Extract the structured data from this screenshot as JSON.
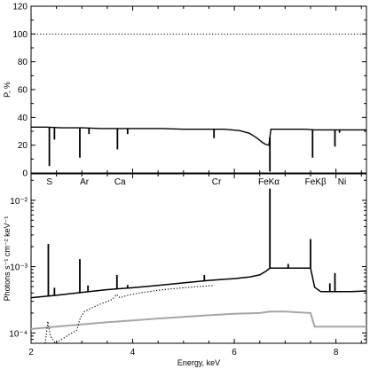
{
  "chart_data": [
    {
      "type": "line",
      "panel": "top",
      "ylabel": "P, %",
      "xlim": [
        2.0,
        8.6
      ],
      "ylim": [
        0,
        120
      ],
      "yticks": [
        0,
        20,
        40,
        60,
        80,
        100,
        120
      ],
      "reference_line": {
        "y": 100,
        "style": "dotted"
      },
      "series": [
        {
          "style": "solid",
          "x": [
            2.0,
            2.3,
            2.6,
            3.0,
            3.4,
            3.8,
            4.2,
            4.6,
            5.0,
            5.4,
            5.8,
            6.1,
            6.3,
            6.45,
            6.55,
            6.62,
            6.68,
            6.72,
            7.0,
            7.4,
            7.58,
            7.8,
            8.1,
            8.4,
            8.6
          ],
          "y": [
            33,
            33,
            32.5,
            32.5,
            32,
            32,
            32,
            32,
            31.5,
            31.5,
            31.5,
            30.5,
            28.5,
            25,
            22,
            20.5,
            20,
            31.5,
            31.5,
            31.5,
            31,
            31,
            31,
            31,
            31
          ]
        }
      ],
      "dips": [
        {
          "x": 2.36,
          "y": 5
        },
        {
          "x": 2.46,
          "y": 24
        },
        {
          "x": 2.96,
          "y": 11
        },
        {
          "x": 3.14,
          "y": 28
        },
        {
          "x": 3.7,
          "y": 17
        },
        {
          "x": 3.9,
          "y": 28
        },
        {
          "x": 5.6,
          "y": 25
        },
        {
          "x": 6.7,
          "y": 1
        },
        {
          "x": 7.54,
          "y": 11
        },
        {
          "x": 7.98,
          "y": 19
        },
        {
          "x": 8.07,
          "y": 29
        }
      ],
      "line_labels": [
        {
          "text": "S",
          "x": 2.45
        },
        {
          "text": "Ar",
          "x": 3.05
        },
        {
          "text": "Ca",
          "x": 3.75
        },
        {
          "text": "Cr",
          "x": 5.65
        },
        {
          "text": "FeKα",
          "x": 6.68
        },
        {
          "text": "FeKβ",
          "x": 7.6
        },
        {
          "text": "Ni",
          "x": 8.12
        }
      ]
    },
    {
      "type": "line",
      "panel": "bottom",
      "xlabel": "Energy, keV",
      "ylabel": "Photons s⁻¹ cm⁻² keV⁻¹",
      "xlim": [
        2.0,
        8.6
      ],
      "ylim": [
        7e-05,
        0.025
      ],
      "yscale": "log",
      "xticks": [
        2,
        4,
        6,
        8
      ],
      "ytick_labels": [
        {
          "value": 0.0001,
          "label": "10⁻⁴"
        },
        {
          "value": 0.001,
          "label": "10⁻³"
        },
        {
          "value": 0.01,
          "label": "10⁻²"
        }
      ],
      "series": [
        {
          "style": "solid-black",
          "x": [
            2.0,
            2.5,
            3.0,
            3.5,
            4.0,
            4.5,
            5.0,
            5.5,
            6.0,
            6.3,
            6.5,
            6.62,
            6.7,
            6.72,
            7.0,
            7.3,
            7.5,
            7.58,
            7.7,
            8.0,
            8.3,
            8.6
          ],
          "y": [
            0.00034,
            0.00037,
            0.00041,
            0.00045,
            0.00048,
            0.00052,
            0.00057,
            0.00062,
            0.00066,
            0.0007,
            0.00075,
            0.00085,
            0.00095,
            0.00095,
            0.00095,
            0.00095,
            0.00095,
            0.00049,
            0.00042,
            0.00042,
            0.00042,
            0.00043
          ]
        },
        {
          "style": "solid-gray",
          "x": [
            2.0,
            2.5,
            3.0,
            3.5,
            4.0,
            4.5,
            5.0,
            5.5,
            6.0,
            6.5,
            6.7,
            7.0,
            7.5,
            7.58,
            7.7,
            8.0,
            8.6
          ],
          "y": [
            0.000115,
            0.000125,
            0.000135,
            0.000145,
            0.000155,
            0.000165,
            0.000175,
            0.000185,
            0.000195,
            0.0002,
            0.00021,
            0.00021,
            0.0002,
            0.000125,
            0.000125,
            0.000125,
            0.000125
          ]
        },
        {
          "style": "dotted",
          "x": [
            2.28,
            2.33,
            2.38,
            2.48,
            2.6,
            2.75,
            2.9,
            2.97,
            3.05,
            3.2,
            3.4,
            3.6,
            3.68,
            3.75,
            3.9,
            4.2,
            4.6,
            5.0,
            5.3,
            5.6
          ],
          "y": [
            7e-05,
            0.00015,
            9e-05,
            7e-05,
            8e-05,
            9.5e-05,
            0.00011,
            0.00017,
            0.00021,
            0.00024,
            0.00028,
            0.00032,
            0.00038,
            0.00034,
            0.00037,
            0.00041,
            0.00045,
            0.00048,
            0.0005,
            0.00052
          ]
        }
      ],
      "lines": [
        {
          "x": 2.34,
          "peak": 0.0022
        },
        {
          "x": 2.46,
          "peak": 0.00048
        },
        {
          "x": 2.96,
          "peak": 0.0013
        },
        {
          "x": 3.12,
          "peak": 0.00052
        },
        {
          "x": 3.69,
          "peak": 0.00075
        },
        {
          "x": 3.9,
          "peak": 0.00053
        },
        {
          "x": 5.41,
          "peak": 0.00075
        },
        {
          "x": 6.7,
          "peak": 0.015
        },
        {
          "x": 7.06,
          "peak": 0.0011
        },
        {
          "x": 7.5,
          "peak": 0.0026
        },
        {
          "x": 7.88,
          "peak": 0.00056
        },
        {
          "x": 7.98,
          "peak": 0.0008
        }
      ]
    }
  ]
}
